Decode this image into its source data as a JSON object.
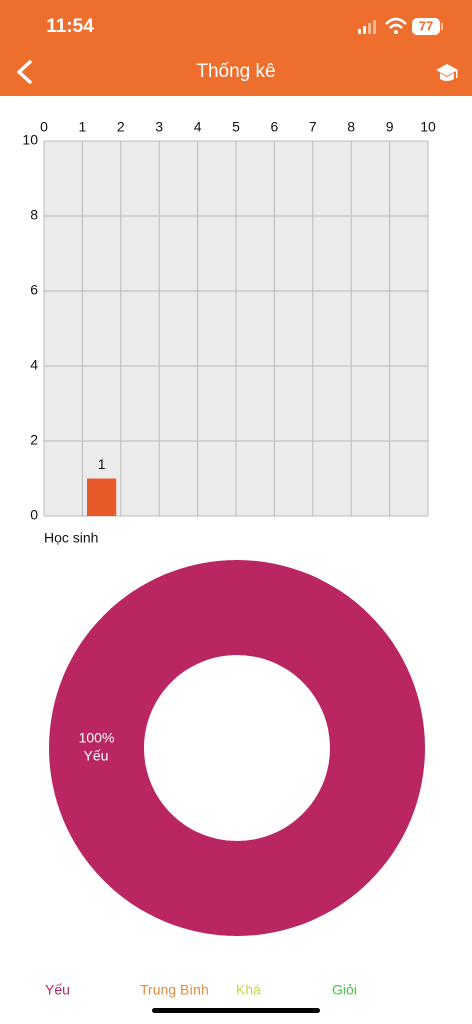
{
  "status_bar": {
    "time": "11:54",
    "battery": "77"
  },
  "header": {
    "title": "Thống kê"
  },
  "chart_data": [
    {
      "type": "bar",
      "x": [
        1.5
      ],
      "values": [
        1
      ],
      "xlabel": "Học sinh",
      "xlim": [
        0,
        10
      ],
      "xticks": [
        0,
        1,
        2,
        3,
        4,
        5,
        6,
        7,
        8,
        9,
        10
      ],
      "ylim": [
        0,
        10
      ],
      "yticks": [
        0,
        2,
        4,
        6,
        8,
        10
      ],
      "color": "#e85a2a",
      "grid": true
    },
    {
      "type": "donut",
      "categories": [
        "Yếu",
        "Trung Bình",
        "Khá",
        "Giỏi"
      ],
      "values": [
        100,
        0,
        0,
        0
      ],
      "value_labels": [
        "100%",
        null,
        null,
        null
      ],
      "colors": [
        "#b92662",
        "#e8883a",
        "#c8d44a",
        "#4cc04a"
      ],
      "legend": "bottom"
    }
  ]
}
